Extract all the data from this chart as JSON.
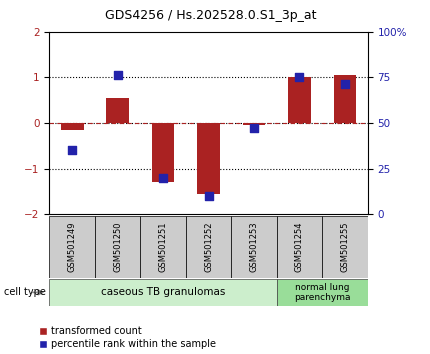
{
  "title": "GDS4256 / Hs.202528.0.S1_3p_at",
  "samples": [
    "GSM501249",
    "GSM501250",
    "GSM501251",
    "GSM501252",
    "GSM501253",
    "GSM501254",
    "GSM501255"
  ],
  "red_values": [
    -0.15,
    0.55,
    -1.3,
    -1.55,
    -0.05,
    1.0,
    1.05
  ],
  "blue_values": [
    -0.6,
    1.05,
    -1.2,
    -1.6,
    -0.1,
    1.0,
    0.85
  ],
  "ylim": [
    -2,
    2
  ],
  "yticks_left": [
    -2,
    -1,
    0,
    1,
    2
  ],
  "yticks_right": [
    0,
    25,
    50,
    75,
    100
  ],
  "red_color": "#AA2222",
  "blue_color": "#2222AA",
  "dotted_lines": [
    -1,
    0,
    1
  ],
  "group1_label": "caseous TB granulomas",
  "group2_label": "normal lung\nparenchyma",
  "group1_color": "#CCEECC",
  "group2_color": "#99DD99",
  "cell_type_label": "cell type",
  "legend_red": "transformed count",
  "legend_blue": "percentile rank within the sample",
  "bar_width": 0.5,
  "blue_size": 40,
  "sample_box_color": "#CCCCCC",
  "fig_bg": "#FFFFFF"
}
